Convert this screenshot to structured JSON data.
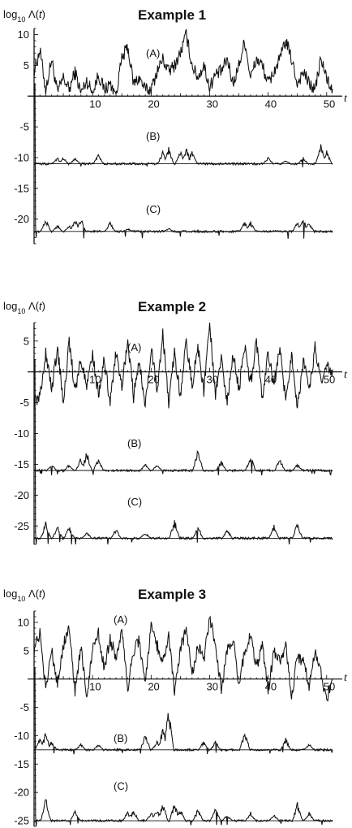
{
  "chart_data": [
    {
      "type": "line",
      "title": "Example 1",
      "ylabel": "log10 Λ(t)",
      "xlabel": "t",
      "xlim": [
        0,
        51
      ],
      "ylim": [
        -24,
        11
      ],
      "xticks": [
        10,
        20,
        30,
        40,
        50
      ],
      "yticks": [
        10,
        5,
        -5,
        -10,
        -15,
        -20
      ],
      "series": [
        {
          "name": "(A)",
          "baseline": 0,
          "amp": 10,
          "neg": 0,
          "label_x": 14,
          "label_y": 7,
          "points": [
            [
              0,
              4
            ],
            [
              1,
              7.5
            ],
            [
              2,
              1
            ],
            [
              3,
              6
            ],
            [
              4,
              0.5
            ],
            [
              5,
              3
            ],
            [
              6,
              1
            ],
            [
              7,
              4
            ],
            [
              8,
              0.5
            ],
            [
              9,
              2.5
            ],
            [
              10,
              0.5
            ],
            [
              11,
              3.5
            ],
            [
              12,
              1
            ],
            [
              13,
              2
            ],
            [
              14,
              0.5
            ],
            [
              15,
              6
            ],
            [
              16,
              8
            ],
            [
              17,
              2
            ],
            [
              18,
              3
            ],
            [
              19,
              1
            ],
            [
              20,
              1
            ],
            [
              21,
              4
            ],
            [
              22,
              6
            ],
            [
              23,
              4
            ],
            [
              24,
              5
            ],
            [
              25,
              7
            ],
            [
              26,
              10
            ],
            [
              27,
              5
            ],
            [
              28,
              3
            ],
            [
              29,
              5
            ],
            [
              30,
              1.5
            ],
            [
              31,
              3.5
            ],
            [
              32,
              4
            ],
            [
              33,
              6
            ],
            [
              34,
              2
            ],
            [
              35,
              5
            ],
            [
              36,
              9
            ],
            [
              37,
              3
            ],
            [
              38,
              6
            ],
            [
              39,
              5
            ],
            [
              40,
              2
            ],
            [
              41,
              4
            ],
            [
              42,
              6
            ],
            [
              43,
              9
            ],
            [
              44,
              6
            ],
            [
              45,
              2
            ],
            [
              46,
              4
            ],
            [
              47,
              2
            ],
            [
              48,
              1
            ],
            [
              49,
              6
            ],
            [
              50,
              3
            ],
            [
              51,
              0.5
            ]
          ]
        },
        {
          "name": "(B)",
          "baseline": -11,
          "amp": 3,
          "neg": 0.4,
          "label_x": 14,
          "label_y": -8.5,
          "points": [
            [
              4,
              1
            ],
            [
              5,
              1
            ],
            [
              7,
              1
            ],
            [
              11,
              1.5
            ],
            [
              22,
              2
            ],
            [
              23,
              2.5
            ],
            [
              25,
              2
            ],
            [
              26,
              2.5
            ],
            [
              27,
              2
            ],
            [
              40,
              1
            ],
            [
              43,
              0.5
            ],
            [
              46,
              1
            ],
            [
              49,
              3.5
            ],
            [
              50,
              2
            ]
          ]
        },
        {
          "name": "(C)",
          "baseline": -22,
          "amp": 3,
          "neg": 0.6,
          "label_x": 14,
          "label_y": -19.5,
          "points": [
            [
              2,
              2
            ],
            [
              4,
              1
            ],
            [
              6,
              1
            ],
            [
              7,
              2
            ],
            [
              8,
              2
            ],
            [
              13,
              1.5
            ],
            [
              16,
              0.5
            ],
            [
              23,
              0.5
            ],
            [
              36,
              1.5
            ],
            [
              37,
              1.5
            ],
            [
              45,
              1.5
            ],
            [
              46,
              2
            ],
            [
              47,
              1.5
            ]
          ]
        }
      ]
    },
    {
      "type": "line",
      "title": "Example 2",
      "ylabel": "log10 Λ(t)",
      "xlabel": "t",
      "xlim": [
        0,
        51
      ],
      "ylim": [
        -28,
        8
      ],
      "xticks": [
        10,
        20,
        30,
        40,
        50
      ],
      "yticks": [
        5,
        -5,
        -10,
        -15,
        -20,
        -25
      ],
      "series": [
        {
          "name": "(A)",
          "baseline": 0,
          "amp": 7,
          "neg": -7,
          "label_x": 13,
          "label_y": 3.8,
          "points": [
            [
              0,
              -5
            ],
            [
              1,
              -4
            ],
            [
              2,
              3
            ],
            [
              3,
              -3
            ],
            [
              4,
              4
            ],
            [
              5,
              -5
            ],
            [
              6,
              5
            ],
            [
              7,
              -3
            ],
            [
              8,
              2
            ],
            [
              9,
              -2
            ],
            [
              10,
              3
            ],
            [
              11,
              -4
            ],
            [
              12,
              2
            ],
            [
              13,
              -5
            ],
            [
              14,
              3
            ],
            [
              15,
              -2
            ],
            [
              16,
              5
            ],
            [
              17,
              -4
            ],
            [
              18,
              2
            ],
            [
              19,
              -6
            ],
            [
              20,
              4
            ],
            [
              21,
              -3
            ],
            [
              22,
              6
            ],
            [
              23,
              -5
            ],
            [
              24,
              3
            ],
            [
              25,
              -4
            ],
            [
              26,
              5
            ],
            [
              27,
              -2
            ],
            [
              28,
              4
            ],
            [
              29,
              -3
            ],
            [
              30,
              8
            ],
            [
              31,
              -4
            ],
            [
              32,
              2
            ],
            [
              33,
              -5
            ],
            [
              34,
              3
            ],
            [
              35,
              -3
            ],
            [
              36,
              4
            ],
            [
              37,
              -2
            ],
            [
              38,
              5
            ],
            [
              39,
              -4
            ],
            [
              40,
              3
            ],
            [
              41,
              -2
            ],
            [
              42,
              4
            ],
            [
              43,
              -5
            ],
            [
              44,
              3
            ],
            [
              45,
              -6
            ],
            [
              46,
              2
            ],
            [
              47,
              -3
            ],
            [
              48,
              4
            ],
            [
              49,
              -2
            ],
            [
              50,
              1
            ],
            [
              51,
              0
            ]
          ]
        },
        {
          "name": "(B)",
          "baseline": -16,
          "amp": 3,
          "neg": 0.4,
          "label_x": 13,
          "label_y": -12,
          "points": [
            [
              3,
              1
            ],
            [
              6,
              1
            ],
            [
              8,
              2
            ],
            [
              9,
              3
            ],
            [
              11,
              2
            ],
            [
              19,
              1
            ],
            [
              21,
              1
            ],
            [
              28,
              3.5
            ],
            [
              32,
              1.5
            ],
            [
              37,
              2.5
            ],
            [
              42,
              2
            ],
            [
              45,
              1
            ]
          ]
        },
        {
          "name": "(C)",
          "baseline": -27,
          "amp": 3,
          "neg": 0.6,
          "label_x": 13,
          "label_y": -23,
          "points": [
            [
              2,
              2.5
            ],
            [
              4,
              2
            ],
            [
              6,
              2
            ],
            [
              9,
              1
            ],
            [
              14,
              1.5
            ],
            [
              19,
              1
            ],
            [
              24,
              3
            ],
            [
              28,
              2
            ],
            [
              33,
              1.5
            ],
            [
              41,
              2
            ],
            [
              45,
              2.5
            ]
          ]
        }
      ]
    },
    {
      "type": "line",
      "title": "Example 3",
      "ylabel": "log10 Λ(t)",
      "xlabel": "t",
      "xlim": [
        0,
        51
      ],
      "ylim": [
        -26,
        12
      ],
      "xticks": [
        10,
        20,
        30,
        40,
        50
      ],
      "yticks": [
        10,
        5,
        -5,
        -10,
        -15,
        -20,
        -25
      ],
      "series": [
        {
          "name": "(A)",
          "baseline": 0,
          "amp": 11,
          "neg": -4,
          "label_x": 12,
          "label_y": 10,
          "points": [
            [
              0,
              5
            ],
            [
              1,
              8
            ],
            [
              2,
              -2
            ],
            [
              3,
              5
            ],
            [
              4,
              -1
            ],
            [
              5,
              6
            ],
            [
              6,
              9
            ],
            [
              7,
              -2
            ],
            [
              8,
              6
            ],
            [
              9,
              -3
            ],
            [
              10,
              5
            ],
            [
              11,
              8
            ],
            [
              12,
              2
            ],
            [
              13,
              7
            ],
            [
              14,
              4
            ],
            [
              15,
              9
            ],
            [
              16,
              -2
            ],
            [
              17,
              5
            ],
            [
              18,
              7
            ],
            [
              19,
              -1
            ],
            [
              20,
              9
            ],
            [
              21,
              6
            ],
            [
              22,
              3
            ],
            [
              23,
              8
            ],
            [
              24,
              -2
            ],
            [
              25,
              5
            ],
            [
              26,
              9
            ],
            [
              27,
              1
            ],
            [
              28,
              6
            ],
            [
              29,
              3
            ],
            [
              30,
              11
            ],
            [
              31,
              6
            ],
            [
              32,
              -2
            ],
            [
              33,
              5
            ],
            [
              34,
              7
            ],
            [
              35,
              -1
            ],
            [
              36,
              5
            ],
            [
              37,
              8
            ],
            [
              38,
              2
            ],
            [
              39,
              6
            ],
            [
              40,
              -2
            ],
            [
              41,
              5
            ],
            [
              42,
              3
            ],
            [
              43,
              6
            ],
            [
              44,
              -3
            ],
            [
              45,
              4
            ],
            [
              46,
              3
            ],
            [
              47,
              -1
            ],
            [
              48,
              5
            ],
            [
              49,
              1
            ],
            [
              50,
              -4
            ],
            [
              51,
              1
            ]
          ]
        },
        {
          "name": "(B)",
          "baseline": -12.5,
          "amp": 3,
          "neg": 0.4,
          "label_x": 12,
          "label_y": -9.5,
          "points": [
            [
              1,
              2
            ],
            [
              2,
              3
            ],
            [
              3,
              1.5
            ],
            [
              8,
              1
            ],
            [
              11,
              1
            ],
            [
              19,
              3
            ],
            [
              21,
              1.5
            ],
            [
              22,
              4
            ],
            [
              23,
              7
            ],
            [
              29,
              1.5
            ],
            [
              31,
              1.5
            ],
            [
              36,
              3.5
            ],
            [
              43,
              2
            ],
            [
              47,
              1
            ]
          ]
        },
        {
          "name": "(C)",
          "baseline": -25,
          "amp": 3,
          "neg": 0.4,
          "label_x": 12,
          "label_y": -21.5,
          "points": [
            [
              2,
              4
            ],
            [
              7,
              2
            ],
            [
              16,
              1.5
            ],
            [
              17,
              2
            ],
            [
              20,
              1.5
            ],
            [
              21,
              2
            ],
            [
              22,
              3
            ],
            [
              24,
              3
            ],
            [
              25,
              2
            ],
            [
              28,
              2
            ],
            [
              31,
              2.5
            ],
            [
              33,
              1
            ],
            [
              37,
              1.5
            ],
            [
              41,
              1
            ],
            [
              45,
              3
            ],
            [
              47,
              1.5
            ]
          ]
        }
      ]
    }
  ]
}
